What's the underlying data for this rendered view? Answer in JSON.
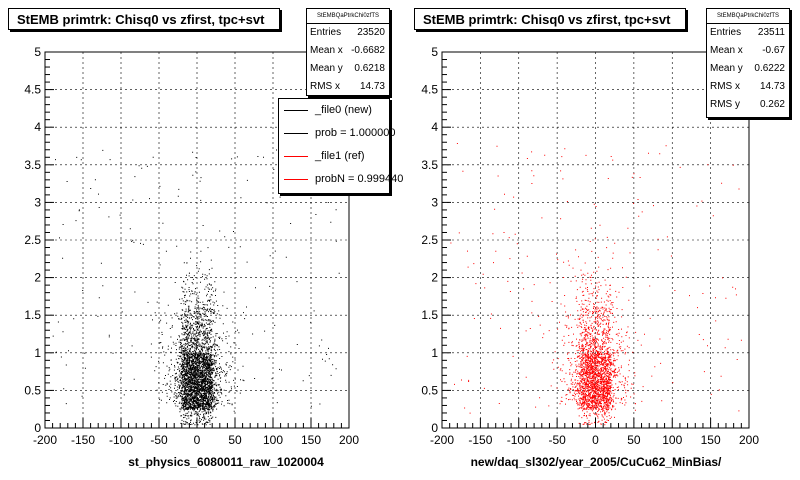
{
  "colors": {
    "ref": "#ff0000",
    "new": "#000000",
    "frame": "#000000"
  },
  "chart_data": [
    {
      "type": "scatter",
      "title": "StEMB primtrk: Chisq0 vs zfirst, tpc+svt",
      "xlabel": "st_physics_6080011_raw_1020004",
      "ylabel": "",
      "xlim": [
        -200,
        200
      ],
      "ylim": [
        0,
        5
      ],
      "xticks": [
        -200,
        -150,
        -100,
        -50,
        0,
        50,
        100,
        150,
        200
      ],
      "yticks": [
        0,
        0.5,
        1,
        1.5,
        2,
        2.5,
        3,
        3.5,
        4,
        4.5,
        5
      ],
      "grid": true,
      "series_color": "#000000",
      "stats": {
        "name": "StEMBQaPtrkChi0zfTS",
        "rows": [
          {
            "label": "Entries",
            "value": "23520"
          },
          {
            "label": "Mean x",
            "value": "-0.6682"
          },
          {
            "label": "Mean y",
            "value": "0.6218"
          },
          {
            "label": "RMS x",
            "value": "14.73"
          }
        ]
      },
      "legend": [
        {
          "label": "_file0 (new)",
          "color": "#000000"
        },
        {
          "label": "prob = 1.000000",
          "color": "#000000"
        },
        {
          "label": "_file1 (ref)",
          "color": "#ff0000"
        },
        {
          "label": "probN = 0.999440",
          "color": "#ff0000"
        }
      ],
      "distribution": {
        "core_x": [
          -20,
          20
        ],
        "core_y": [
          0.25,
          1.0
        ],
        "entries": 23520
      }
    },
    {
      "type": "scatter",
      "title": "StEMB primtrk: Chisq0 vs zfirst, tpc+svt",
      "xlabel": "new/daq_sl302/year_2005/CuCu62_MinBias/",
      "ylabel": "",
      "xlim": [
        -200,
        200
      ],
      "ylim": [
        0,
        5
      ],
      "xticks": [
        -200,
        -150,
        -100,
        -50,
        0,
        50,
        100,
        150,
        200
      ],
      "yticks": [
        0,
        0.5,
        1,
        1.5,
        2,
        2.5,
        3,
        3.5,
        4,
        4.5,
        5
      ],
      "grid": true,
      "series_color": "#ff0000",
      "stats": {
        "name": "StEMBQaPtrkChi0zfTS",
        "rows": [
          {
            "label": "Entries",
            "value": "23511"
          },
          {
            "label": "Mean x",
            "value": "-0.67"
          },
          {
            "label": "Mean y",
            "value": "0.6222"
          },
          {
            "label": "RMS x",
            "value": "14.73"
          },
          {
            "label": "RMS y",
            "value": "0.262"
          }
        ]
      },
      "distribution": {
        "core_x": [
          -20,
          20
        ],
        "core_y": [
          0.25,
          1.0
        ],
        "entries": 23511
      }
    }
  ]
}
